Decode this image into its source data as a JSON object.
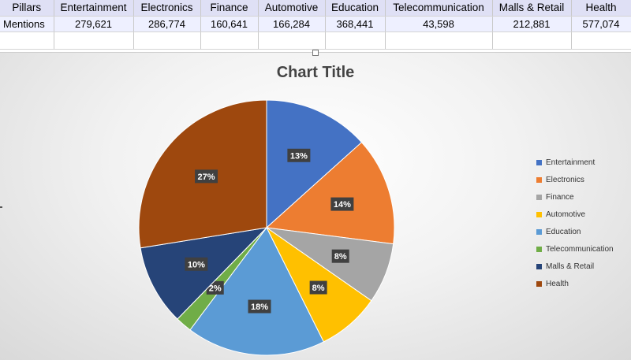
{
  "sheet": {
    "header": [
      "Pillars",
      "Entertainment",
      "Electronics",
      "Finance",
      "Automotive",
      "Education",
      "Telecommunication",
      "Malls & Retail",
      "Health"
    ],
    "values": [
      "Mentions",
      "279,621",
      "286,774",
      "160,641",
      "166,284",
      "368,441",
      "43,598",
      "212,881",
      "577,074"
    ]
  },
  "chart_data": {
    "type": "pie",
    "title": "Chart Title",
    "categories": [
      "Entertainment",
      "Electronics",
      "Finance",
      "Automotive",
      "Education",
      "Telecommunication",
      "Malls & Retail",
      "Health"
    ],
    "values": [
      279621,
      286774,
      160641,
      166284,
      368441,
      43598,
      212881,
      577074
    ],
    "labels": [
      "13%",
      "14%",
      "8%",
      "8%",
      "18%",
      "2%",
      "10%",
      "27%"
    ],
    "colors": [
      "#4472C4",
      "#ED7D31",
      "#A5A5A5",
      "#FFC000",
      "#5B9BD5",
      "#70AD47",
      "#264478",
      "#9E480E"
    ],
    "legend_position": "right"
  }
}
